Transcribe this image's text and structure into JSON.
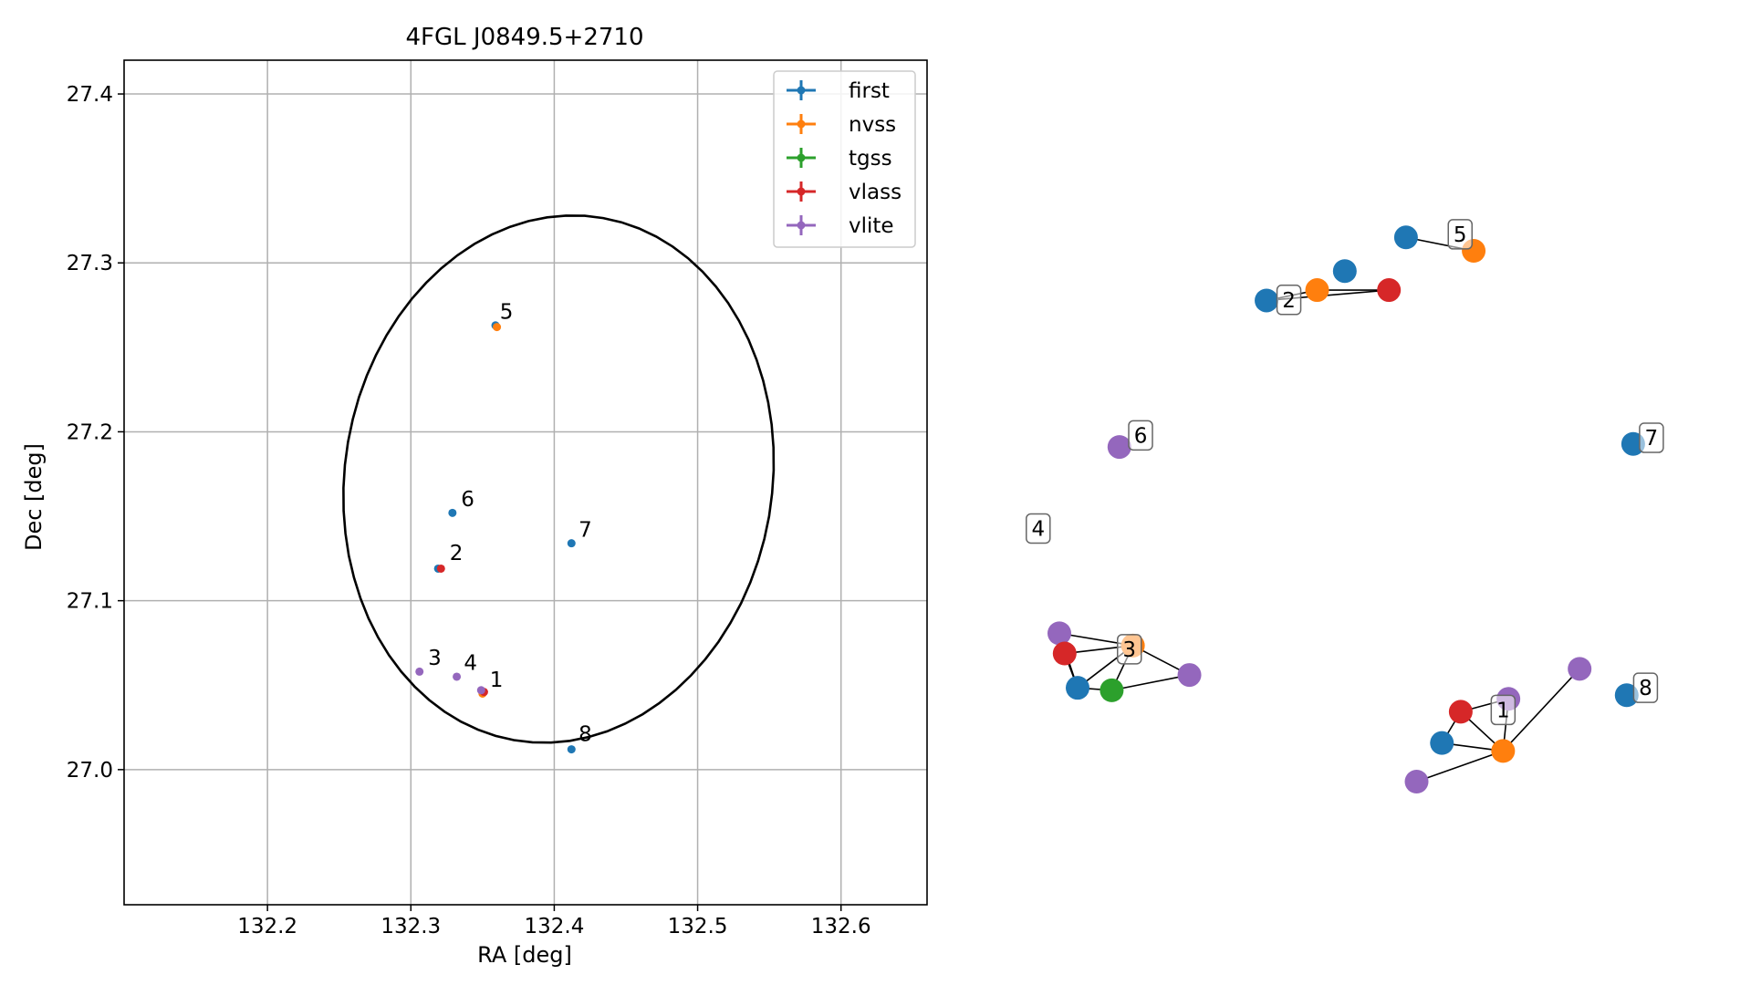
{
  "chart_data": [
    {
      "type": "scatter",
      "title": "4FGL J0849.5+2710",
      "xlabel": "RA [deg]",
      "ylabel": "Dec [deg]",
      "xlim": [
        132.1,
        132.66
      ],
      "ylim": [
        26.92,
        27.42
      ],
      "xticks": [
        132.2,
        132.3,
        132.4,
        132.5,
        132.6
      ],
      "yticks": [
        27.0,
        27.1,
        27.2,
        27.3,
        27.4
      ],
      "xtick_labels": [
        "132.2",
        "132.3",
        "132.4",
        "132.5",
        "132.6"
      ],
      "ytick_labels": [
        "27.0",
        "27.1",
        "27.2",
        "27.3",
        "27.4"
      ],
      "grid": true,
      "legend_position": "top-right",
      "series": [
        {
          "name": "first",
          "color": "#1f77b4",
          "points": [
            [
              132.359,
              27.263
            ],
            [
              132.329,
              27.152
            ],
            [
              132.412,
              27.134
            ],
            [
              132.412,
              27.012
            ],
            [
              132.319,
              27.119
            ]
          ]
        },
        {
          "name": "nvss",
          "color": "#ff7f0e",
          "points": [
            [
              132.36,
              27.262
            ],
            [
              132.35,
              27.045
            ]
          ]
        },
        {
          "name": "tgss",
          "color": "#2ca02c",
          "points": []
        },
        {
          "name": "vlass",
          "color": "#d62728",
          "points": [
            [
              132.321,
              27.119
            ],
            [
              132.351,
              27.046
            ]
          ]
        },
        {
          "name": "vlite",
          "color": "#9467bd",
          "points": [
            [
              132.306,
              27.058
            ],
            [
              132.332,
              27.055
            ],
            [
              132.349,
              27.047
            ]
          ]
        }
      ],
      "annotations": [
        {
          "label": "5",
          "x": 132.362,
          "y": 27.267
        },
        {
          "label": "6",
          "x": 132.335,
          "y": 27.156
        },
        {
          "label": "7",
          "x": 132.417,
          "y": 27.138
        },
        {
          "label": "2",
          "x": 132.327,
          "y": 27.124
        },
        {
          "label": "3",
          "x": 132.312,
          "y": 27.062
        },
        {
          "label": "4",
          "x": 132.337,
          "y": 27.059
        },
        {
          "label": "1",
          "x": 132.355,
          "y": 27.049
        },
        {
          "label": "8",
          "x": 132.417,
          "y": 27.017
        }
      ],
      "ellipse": {
        "center": [
          132.403,
          27.172
        ],
        "semi_major": 0.159,
        "semi_minor": 0.147,
        "angle_deg": 60
      }
    },
    {
      "type": "network",
      "node_colors": {
        "first": "#1f77b4",
        "nvss": "#ff7f0e",
        "tgss": "#2ca02c",
        "vlass": "#d62728",
        "vlite": "#9467bd"
      },
      "nodes": [
        {
          "id": "n1",
          "source": "first",
          "x": 0.352,
          "y": 0.785
        },
        {
          "id": "n2",
          "source": "first",
          "x": 0.485,
          "y": 0.833
        },
        {
          "id": "n3",
          "source": "nvss",
          "x": 0.438,
          "y": 0.802
        },
        {
          "id": "n4",
          "source": "vlass",
          "x": 0.56,
          "y": 0.802
        },
        {
          "id": "n5",
          "source": "first",
          "x": 0.589,
          "y": 0.888
        },
        {
          "id": "n6",
          "source": "nvss",
          "x": 0.704,
          "y": 0.866
        },
        {
          "id": "n7",
          "source": "vlite",
          "x": 0.102,
          "y": 0.546
        },
        {
          "id": "n8",
          "source": "first",
          "x": 0.975,
          "y": 0.551
        },
        {
          "id": "n9",
          "source": "vlite",
          "x": 0.0,
          "y": 0.242
        },
        {
          "id": "n10",
          "source": "vlass",
          "x": 0.009,
          "y": 0.209
        },
        {
          "id": "n11",
          "source": "first",
          "x": 0.031,
          "y": 0.153
        },
        {
          "id": "n12",
          "source": "tgss",
          "x": 0.089,
          "y": 0.149
        },
        {
          "id": "n13",
          "source": "nvss",
          "x": 0.125,
          "y": 0.222
        },
        {
          "id": "n14",
          "source": "vlite",
          "x": 0.221,
          "y": 0.174
        },
        {
          "id": "n15",
          "source": "vlite",
          "x": 0.884,
          "y": 0.184
        },
        {
          "id": "n16",
          "source": "vlite",
          "x": 0.763,
          "y": 0.135
        },
        {
          "id": "n17",
          "source": "vlass",
          "x": 0.682,
          "y": 0.114
        },
        {
          "id": "n18",
          "source": "first",
          "x": 0.65,
          "y": 0.063
        },
        {
          "id": "n19",
          "source": "nvss",
          "x": 0.754,
          "y": 0.05
        },
        {
          "id": "n20",
          "source": "vlite",
          "x": 0.607,
          "y": 0.0
        },
        {
          "id": "n21",
          "source": "first",
          "x": 0.964,
          "y": 0.141
        }
      ],
      "edges": [
        [
          "n1",
          "n3"
        ],
        [
          "n1",
          "n4"
        ],
        [
          "n3",
          "n4"
        ],
        [
          "n5",
          "n6"
        ],
        [
          "n9",
          "n10"
        ],
        [
          "n9",
          "n11"
        ],
        [
          "n9",
          "n13"
        ],
        [
          "n10",
          "n11"
        ],
        [
          "n10",
          "n13"
        ],
        [
          "n11",
          "n12"
        ],
        [
          "n11",
          "n13"
        ],
        [
          "n12",
          "n13"
        ],
        [
          "n12",
          "n14"
        ],
        [
          "n13",
          "n14"
        ],
        [
          "n16",
          "n17"
        ],
        [
          "n17",
          "n18"
        ],
        [
          "n18",
          "n19"
        ],
        [
          "n17",
          "n19"
        ],
        [
          "n16",
          "n19"
        ],
        [
          "n15",
          "n19"
        ],
        [
          "n19",
          "n20"
        ]
      ],
      "labels": [
        {
          "text": "2",
          "node": "n1",
          "dx": 0.038,
          "dy": 0.001
        },
        {
          "text": "5",
          "node": "n5",
          "dx": 0.092,
          "dy": 0.005
        },
        {
          "text": "6",
          "node": "n7",
          "dx": 0.036,
          "dy": 0.019
        },
        {
          "text": "4",
          "node": "n7",
          "dx": -0.138,
          "dy": -0.133
        },
        {
          "text": "7",
          "node": "n8",
          "dx": 0.031,
          "dy": 0.01
        },
        {
          "text": "3",
          "node": "n13",
          "dx": -0.006,
          "dy": -0.006
        },
        {
          "text": "1",
          "node": "n16",
          "dx": -0.009,
          "dy": -0.018
        },
        {
          "text": "8",
          "node": "n21",
          "dx": 0.032,
          "dy": 0.012
        }
      ]
    }
  ]
}
